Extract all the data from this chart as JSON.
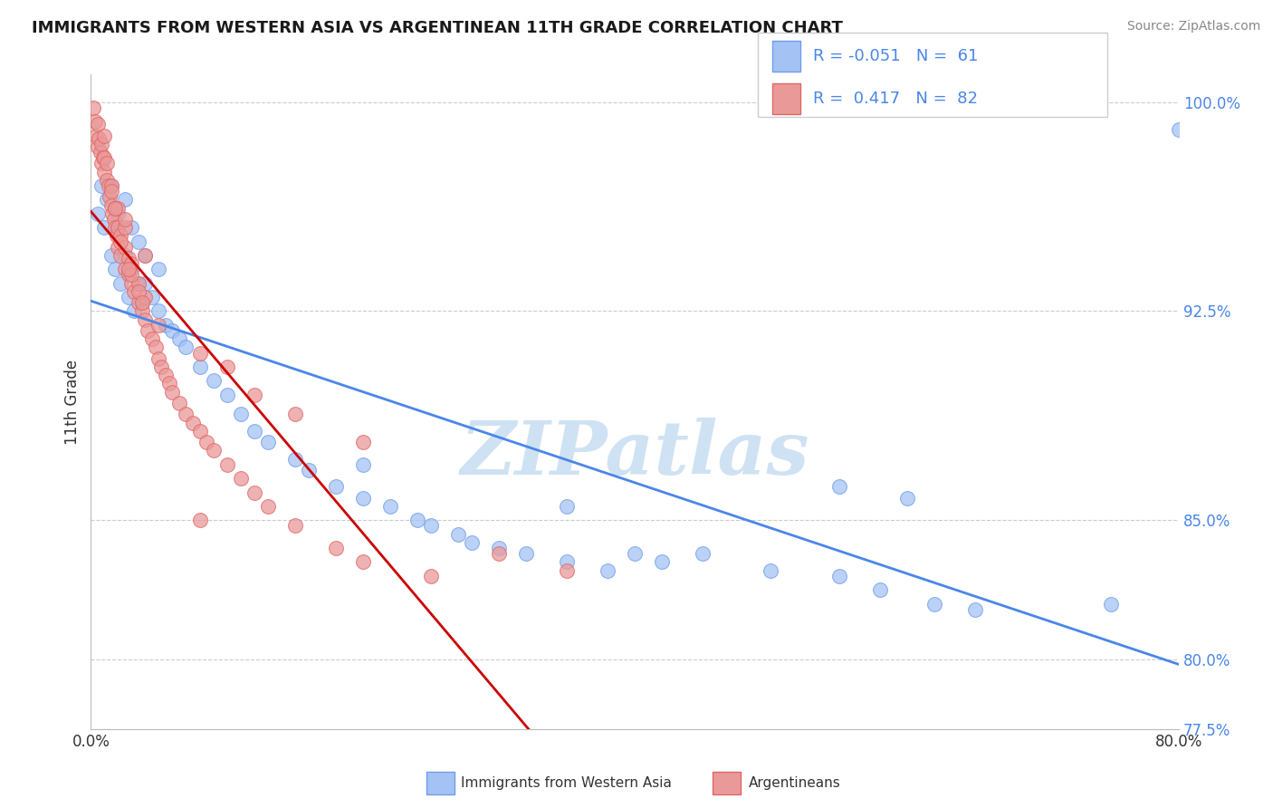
{
  "title": "IMMIGRANTS FROM WESTERN ASIA VS ARGENTINEAN 11TH GRADE CORRELATION CHART",
  "source": "Source: ZipAtlas.com",
  "ylabel_label": "11th Grade",
  "x_min": 0.0,
  "x_max": 0.8,
  "y_min": 0.775,
  "y_max": 1.01,
  "y_ticks_right": [
    0.775,
    0.8,
    0.85,
    0.925,
    1.0
  ],
  "y_tick_labels_right": [
    "77.5%",
    "80.0%",
    "85.0%",
    "92.5%",
    "100.0%"
  ],
  "blue_color": "#a4c2f4",
  "pink_color": "#ea9999",
  "blue_edge_color": "#6d9eeb",
  "pink_edge_color": "#e06666",
  "blue_line_color": "#4a86e8",
  "pink_line_color": "#cc0000",
  "legend_R1": "-0.051",
  "legend_N1": "61",
  "legend_R2": "0.417",
  "legend_N2": "82",
  "watermark": "ZIPatlas",
  "watermark_color": "#cfe2f3",
  "blue_scatter_x": [
    0.005,
    0.008,
    0.01,
    0.012,
    0.015,
    0.015,
    0.018,
    0.02,
    0.02,
    0.022,
    0.025,
    0.025,
    0.028,
    0.03,
    0.03,
    0.032,
    0.035,
    0.035,
    0.038,
    0.04,
    0.04,
    0.045,
    0.05,
    0.05,
    0.055,
    0.06,
    0.065,
    0.07,
    0.08,
    0.09,
    0.1,
    0.11,
    0.12,
    0.13,
    0.15,
    0.16,
    0.18,
    0.2,
    0.22,
    0.24,
    0.25,
    0.27,
    0.28,
    0.3,
    0.32,
    0.35,
    0.38,
    0.4,
    0.42,
    0.45,
    0.5,
    0.55,
    0.58,
    0.62,
    0.65,
    0.35,
    0.2,
    0.55,
    0.6,
    0.75,
    0.8
  ],
  "blue_scatter_y": [
    0.96,
    0.97,
    0.955,
    0.965,
    0.945,
    0.97,
    0.94,
    0.955,
    0.96,
    0.935,
    0.945,
    0.965,
    0.93,
    0.94,
    0.955,
    0.925,
    0.935,
    0.95,
    0.928,
    0.935,
    0.945,
    0.93,
    0.925,
    0.94,
    0.92,
    0.918,
    0.915,
    0.912,
    0.905,
    0.9,
    0.895,
    0.888,
    0.882,
    0.878,
    0.872,
    0.868,
    0.862,
    0.858,
    0.855,
    0.85,
    0.848,
    0.845,
    0.842,
    0.84,
    0.838,
    0.835,
    0.832,
    0.838,
    0.835,
    0.838,
    0.832,
    0.83,
    0.825,
    0.82,
    0.818,
    0.855,
    0.87,
    0.862,
    0.858,
    0.82,
    0.99
  ],
  "pink_scatter_x": [
    0.002,
    0.003,
    0.004,
    0.005,
    0.005,
    0.006,
    0.007,
    0.008,
    0.008,
    0.009,
    0.01,
    0.01,
    0.01,
    0.012,
    0.012,
    0.013,
    0.014,
    0.015,
    0.015,
    0.016,
    0.017,
    0.018,
    0.018,
    0.019,
    0.02,
    0.02,
    0.02,
    0.022,
    0.022,
    0.025,
    0.025,
    0.025,
    0.028,
    0.028,
    0.03,
    0.03,
    0.032,
    0.035,
    0.035,
    0.038,
    0.04,
    0.04,
    0.042,
    0.045,
    0.048,
    0.05,
    0.052,
    0.055,
    0.058,
    0.06,
    0.065,
    0.07,
    0.075,
    0.08,
    0.085,
    0.09,
    0.1,
    0.11,
    0.12,
    0.13,
    0.15,
    0.18,
    0.2,
    0.25,
    0.3,
    0.35,
    0.05,
    0.08,
    0.1,
    0.12,
    0.15,
    0.2,
    0.08,
    0.03,
    0.04,
    0.035,
    0.025,
    0.015,
    0.018,
    0.022,
    0.028,
    0.038
  ],
  "pink_scatter_y": [
    0.998,
    0.993,
    0.988,
    0.984,
    0.992,
    0.987,
    0.982,
    0.978,
    0.985,
    0.98,
    0.975,
    0.98,
    0.988,
    0.972,
    0.978,
    0.97,
    0.966,
    0.963,
    0.97,
    0.96,
    0.958,
    0.955,
    0.962,
    0.952,
    0.948,
    0.955,
    0.962,
    0.945,
    0.952,
    0.94,
    0.948,
    0.955,
    0.938,
    0.944,
    0.935,
    0.942,
    0.932,
    0.928,
    0.935,
    0.925,
    0.922,
    0.93,
    0.918,
    0.915,
    0.912,
    0.908,
    0.905,
    0.902,
    0.899,
    0.896,
    0.892,
    0.888,
    0.885,
    0.882,
    0.878,
    0.875,
    0.87,
    0.865,
    0.86,
    0.855,
    0.848,
    0.84,
    0.835,
    0.83,
    0.838,
    0.832,
    0.92,
    0.91,
    0.905,
    0.895,
    0.888,
    0.878,
    0.85,
    0.938,
    0.945,
    0.932,
    0.958,
    0.968,
    0.962,
    0.95,
    0.94,
    0.928
  ]
}
